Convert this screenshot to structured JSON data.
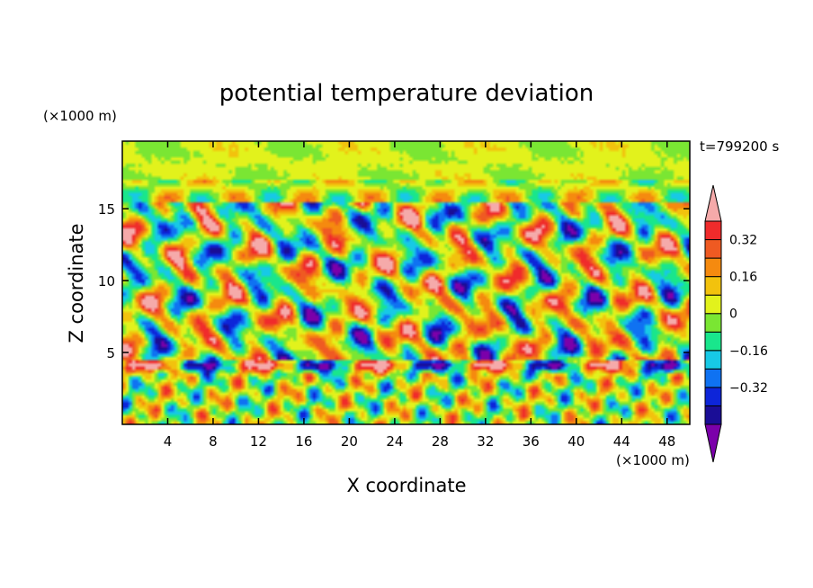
{
  "chart_data": {
    "type": "heatmap",
    "title": "potential temperature deviation",
    "xlabel": "X coordinate",
    "ylabel": "Z coordinate",
    "x_unit": "(×1000 m)",
    "y_unit": "(×1000 m)",
    "time_label": "t=799200 s",
    "xlim": [
      0,
      50
    ],
    "ylim": [
      0,
      19.7
    ],
    "x_ticks": [
      4,
      8,
      12,
      16,
      20,
      24,
      28,
      32,
      36,
      40,
      44,
      48
    ],
    "y_ticks": [
      5,
      10,
      15
    ],
    "colorbar": {
      "levels": [
        -0.48,
        -0.4,
        -0.32,
        -0.24,
        -0.16,
        -0.08,
        0,
        0.08,
        0.16,
        0.24,
        0.32,
        0.4
      ],
      "tick_labels": [
        {
          "value": 0.32,
          "label": "0.32"
        },
        {
          "value": 0.16,
          "label": "0.16"
        },
        {
          "value": 0,
          "label": "0"
        },
        {
          "value": -0.16,
          "label": "−0.16"
        },
        {
          "value": -0.32,
          "label": "−0.32"
        }
      ],
      "colors": [
        "#7b00aa",
        "#1a0d96",
        "#0d25d9",
        "#0f72f2",
        "#17c9e6",
        "#19e68c",
        "#7ae633",
        "#e2f21c",
        "#f2c20d",
        "#f58a0f",
        "#ef5a22",
        "#f02b2b",
        "#f5aaaa"
      ],
      "extend": "both"
    }
  }
}
